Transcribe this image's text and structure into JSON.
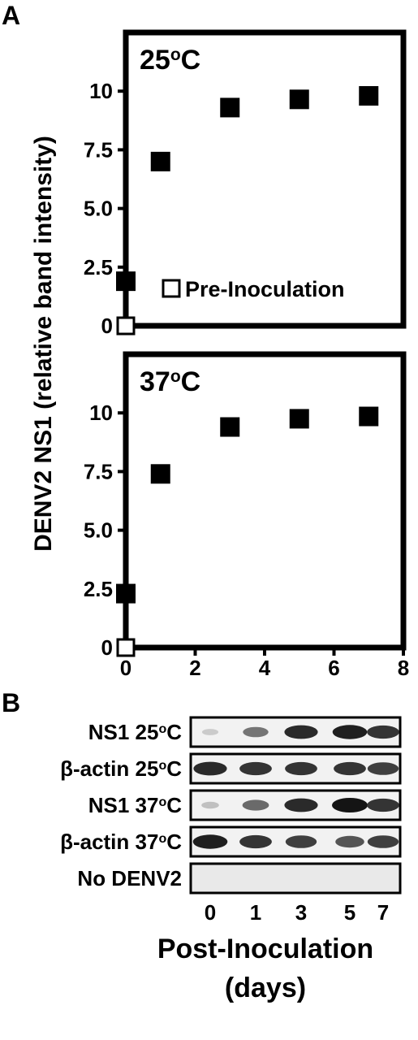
{
  "panel_a_letter": "A",
  "panel_b_letter": "B",
  "chart_data": [
    {
      "type": "line",
      "title": "25°C",
      "title_base": "25",
      "title_sup": "o",
      "title_unit": "C",
      "ylabel": "DENV2 NS1 (relative band intensity)",
      "xlabel": "",
      "xlim": [
        0,
        8
      ],
      "ylim": [
        0,
        12.5
      ],
      "yticks": [
        0,
        2.5,
        5.0,
        7.5,
        10
      ],
      "ytick_labels": [
        "0",
        "2.5",
        "5.0",
        "7.5",
        "10"
      ],
      "series": [
        {
          "name": "",
          "marker": "filled-square",
          "x": [
            0,
            1,
            3,
            5,
            7
          ],
          "y": [
            1.9,
            7.0,
            9.3,
            9.65,
            9.8
          ]
        },
        {
          "name": "Pre-Inoculation",
          "marker": "open-square",
          "x": [
            0
          ],
          "y": [
            0
          ]
        }
      ],
      "legend_text": "Pre-Inoculation",
      "legend": "bottom-right",
      "grid": false
    },
    {
      "type": "line",
      "title": "37°C",
      "title_base": "37",
      "title_sup": "o",
      "title_unit": "C",
      "xlim": [
        0,
        8
      ],
      "ylim": [
        0,
        12.5
      ],
      "xticks": [
        0,
        2,
        4,
        6,
        8
      ],
      "xtick_labels": [
        "0",
        "2",
        "4",
        "6",
        "8"
      ],
      "yticks": [
        0,
        2.5,
        5.0,
        7.5,
        10
      ],
      "ytick_labels": [
        "0",
        "2.5",
        "5.0",
        "7.5",
        "10"
      ],
      "series": [
        {
          "name": "",
          "marker": "filled-square",
          "x": [
            0,
            1,
            3,
            5,
            7
          ],
          "y": [
            2.3,
            7.4,
            9.4,
            9.75,
            9.85
          ]
        },
        {
          "name": "",
          "marker": "open-square",
          "x": [
            0
          ],
          "y": [
            0
          ]
        }
      ],
      "grid": false
    }
  ],
  "blot": {
    "rows": [
      {
        "label": "NS1 25°C",
        "base": "NS1 25",
        "sup": "o",
        "unit": "C",
        "intensity": [
          0.15,
          0.55,
          0.9,
          0.95,
          0.85
        ]
      },
      {
        "label": "β-actin 25°C",
        "base": "β-actin 25",
        "sup": "o",
        "unit": "C",
        "intensity": [
          0.9,
          0.85,
          0.85,
          0.85,
          0.8
        ]
      },
      {
        "label": "NS1 37°C",
        "base": "NS1 37",
        "sup": "o",
        "unit": "C",
        "intensity": [
          0.2,
          0.6,
          0.9,
          1.0,
          0.85
        ]
      },
      {
        "label": "β-actin 37°C",
        "base": "β-actin 37",
        "sup": "o",
        "unit": "C",
        "intensity": [
          0.95,
          0.85,
          0.8,
          0.7,
          0.8
        ]
      },
      {
        "label": "No DENV2",
        "base": "No DENV2",
        "sup": "",
        "unit": "",
        "intensity": [
          0,
          0,
          0,
          0,
          0
        ]
      }
    ],
    "lanes": [
      "0",
      "1",
      "3",
      "5",
      "7"
    ],
    "xlabel_line1": "Post-Inoculation",
    "xlabel_line2": "(days)"
  }
}
